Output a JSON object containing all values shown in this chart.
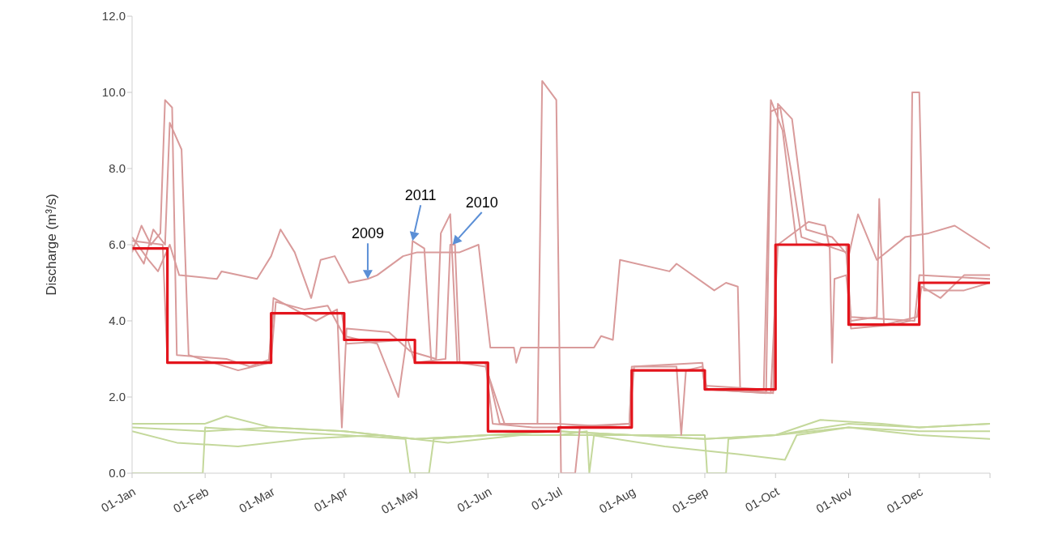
{
  "chart_data": {
    "type": "line",
    "ylabel": "Discharge (m³/s)",
    "xlim": [
      "--01-01",
      "--12-31"
    ],
    "xticks": [
      {
        "value": "--01-01",
        "label": "01-Jan"
      },
      {
        "value": "--02-01",
        "label": "01-Feb"
      },
      {
        "value": "--03-01",
        "label": "01-Mar"
      },
      {
        "value": "--04-01",
        "label": "01-Apr"
      },
      {
        "value": "--05-01",
        "label": "01-May"
      },
      {
        "value": "--06-01",
        "label": "01-Jun"
      },
      {
        "value": "--07-01",
        "label": "01-Jul"
      },
      {
        "value": "--08-01",
        "label": "01-Aug"
      },
      {
        "value": "--09-01",
        "label": "01-Sep"
      },
      {
        "value": "--10-01",
        "label": "01-Oct"
      },
      {
        "value": "--11-01",
        "label": "01-Nov"
      },
      {
        "value": "--12-01",
        "label": "01-Dec"
      },
      {
        "value": "--12-31",
        "label": null
      }
    ],
    "ylim": [
      0,
      12
    ],
    "yticks": [
      {
        "value": 0,
        "label": "0.0"
      },
      {
        "value": 2,
        "label": "2.0"
      },
      {
        "value": 4,
        "label": "4.0"
      },
      {
        "value": 6,
        "label": "6.0"
      },
      {
        "value": 8,
        "label": "8.0"
      },
      {
        "value": 10,
        "label": "10.0"
      },
      {
        "value": 12,
        "label": "12.0"
      }
    ],
    "grid": false,
    "marker": "none",
    "line_style": "solid",
    "series": [
      {
        "color": "#c4d89b",
        "x": [
          "--01-01",
          "--02-01",
          "--02-10",
          "--03-01",
          "--04-01",
          "--05-01",
          "--06-01",
          "--07-01",
          "--08-01",
          "--09-01",
          "--10-01",
          "--11-01",
          "--12-01",
          "--12-31"
        ],
        "values": [
          1.3,
          1.3,
          1.5,
          1.2,
          1.1,
          0.9,
          1.0,
          1.1,
          1.0,
          0.9,
          1.0,
          1.3,
          1.2,
          1.3
        ]
      },
      {
        "color": "#c4d89b",
        "x": [
          "--01-01",
          "--01-31",
          "--02-01",
          "--03-01",
          "--04-01",
          "--04-27",
          "--04-29",
          "--05-07",
          "--05-09",
          "--06-01",
          "--07-01",
          "--08-01",
          "--09-01",
          "--10-01",
          "--11-01",
          "--12-01",
          "--12-31"
        ],
        "values": [
          0.0,
          0.0,
          1.2,
          1.1,
          1.0,
          0.9,
          0.0,
          0.0,
          0.9,
          1.0,
          1.1,
          1.0,
          0.9,
          1.0,
          1.2,
          1.1,
          1.1
        ]
      },
      {
        "color": "#c4d89b",
        "x": [
          "--01-01",
          "--01-20",
          "--02-15",
          "--03-15",
          "--04-15",
          "--05-15",
          "--06-15",
          "--07-15",
          "--08-15",
          "--09-15",
          "--10-05",
          "--10-10",
          "--11-01",
          "--12-01",
          "--12-31"
        ],
        "values": [
          1.1,
          0.8,
          0.7,
          0.9,
          1.0,
          0.8,
          1.0,
          1.0,
          0.7,
          0.5,
          0.35,
          1.0,
          1.2,
          1.0,
          0.9
        ]
      },
      {
        "color": "#c4d89b",
        "x": [
          "--01-01",
          "--02-01",
          "--03-01",
          "--04-01",
          "--05-01",
          "--06-01",
          "--07-01",
          "--07-13",
          "--07-14",
          "--07-16",
          "--08-01",
          "--09-01",
          "--09-02",
          "--09-10",
          "--09-11",
          "--10-01",
          "--10-20",
          "--11-15",
          "--12-01",
          "--12-31"
        ],
        "values": [
          1.2,
          1.1,
          1.2,
          1.1,
          0.9,
          1.0,
          1.0,
          1.1,
          0.0,
          1.0,
          1.0,
          1.0,
          0.0,
          0.0,
          0.9,
          1.0,
          1.4,
          1.3,
          1.2,
          1.3
        ]
      },
      {
        "color": "#d99b9b",
        "x": [
          "--01-01",
          "--01-08",
          "--01-12",
          "--01-17",
          "--01-21",
          "--02-06",
          "--02-08",
          "--02-23",
          "--02-26",
          "--03-01",
          "--03-05",
          "--03-11",
          "--03-18",
          "--03-22",
          "--03-28",
          "--04-03",
          "--04-11",
          "--04-15",
          "--04-26",
          "--05-02",
          "--05-20",
          "--05-28",
          "--06-02",
          "--06-12",
          "--06-13",
          "--06-15",
          "--07-16",
          "--07-19",
          "--07-24",
          "--07-27",
          "--08-17",
          "--08-20",
          "--09-05",
          "--09-10",
          "--09-15",
          "--09-16",
          "--09-30",
          "--10-02",
          "--10-08",
          "--10-14",
          "--10-25",
          "--11-01",
          "--11-05",
          "--11-13",
          "--11-25",
          "--12-05",
          "--12-16",
          "--12-31"
        ],
        "values": [
          6.2,
          5.6,
          5.3,
          6.0,
          5.2,
          5.1,
          5.3,
          5.1,
          5.4,
          5.7,
          6.4,
          5.8,
          4.6,
          5.6,
          5.7,
          5.0,
          5.1,
          5.2,
          5.7,
          5.8,
          5.8,
          6.0,
          3.3,
          3.3,
          2.9,
          3.3,
          3.3,
          3.6,
          3.5,
          5.6,
          5.3,
          5.5,
          4.8,
          5.0,
          4.9,
          2.2,
          2.1,
          9.7,
          9.3,
          6.4,
          6.2,
          5.7,
          6.8,
          5.6,
          6.2,
          6.3,
          6.5,
          5.9
        ]
      },
      {
        "color": "#d99b9b",
        "x": [
          "--01-01",
          "--01-05",
          "--01-09",
          "--01-13",
          "--01-15",
          "--01-18",
          "--01-20",
          "--02-10",
          "--02-20",
          "--03-01",
          "--03-03",
          "--03-15",
          "--03-25",
          "--04-01",
          "--04-15",
          "--04-24",
          "--04-27",
          "--04-30",
          "--05-05",
          "--05-08",
          "--05-31",
          "--06-03",
          "--06-20",
          "--06-30",
          "--07-31",
          "--08-02",
          "--08-20",
          "--08-22",
          "--08-24",
          "--08-31",
          "--09-02",
          "--09-27",
          "--09-29",
          "--10-03",
          "--10-08",
          "--10-12",
          "--10-31",
          "--11-02",
          "--11-29",
          "--12-01",
          "--12-31"
        ],
        "values": [
          5.8,
          6.5,
          6.0,
          6.3,
          9.8,
          9.6,
          3.1,
          3.0,
          2.8,
          3.0,
          4.5,
          4.3,
          4.4,
          3.6,
          3.4,
          2.0,
          3.3,
          6.1,
          5.9,
          2.9,
          2.9,
          1.3,
          1.2,
          1.2,
          1.3,
          2.8,
          2.8,
          1.0,
          2.7,
          2.8,
          2.2,
          2.1,
          9.5,
          9.6,
          7.8,
          6.2,
          5.8,
          4.1,
          4.0,
          5.2,
          5.1
        ]
      },
      {
        "color": "#d99b9b",
        "x": [
          "--01-01",
          "--01-06",
          "--01-10",
          "--01-15",
          "--01-17",
          "--01-22",
          "--01-25",
          "--02-15",
          "--02-28",
          "--03-02",
          "--03-20",
          "--03-29",
          "--03-31",
          "--04-02",
          "--04-20",
          "--04-29",
          "--05-10",
          "--05-12",
          "--05-16",
          "--05-19",
          "--05-31",
          "--06-06",
          "--06-22",
          "--06-24",
          "--06-30",
          "--07-02",
          "--07-08",
          "--07-10",
          "--07-31",
          "--08-01",
          "--08-31",
          "--09-01",
          "--09-26",
          "--09-29",
          "--10-04",
          "--10-10",
          "--10-31",
          "--11-02",
          "--11-20",
          "--11-27",
          "--11-28",
          "--12-01",
          "--12-03",
          "--12-20",
          "--12-31"
        ],
        "values": [
          6.0,
          5.5,
          6.4,
          6.0,
          9.2,
          8.5,
          3.1,
          2.7,
          2.9,
          4.6,
          4.0,
          4.3,
          1.2,
          3.8,
          3.7,
          3.2,
          3.0,
          6.3,
          6.8,
          2.9,
          2.9,
          1.3,
          1.3,
          10.3,
          9.8,
          0.0,
          0.0,
          1.2,
          1.3,
          2.7,
          2.7,
          2.3,
          2.2,
          9.8,
          9.0,
          6.0,
          6.0,
          3.8,
          3.9,
          4.0,
          10.0,
          10.0,
          4.8,
          4.8,
          5.0
        ]
      },
      {
        "color": "#d99b9b",
        "x": [
          "--01-01",
          "--01-14",
          "--01-16",
          "--02-28",
          "--03-02",
          "--03-31",
          "--04-02",
          "--04-28",
          "--05-01",
          "--05-14",
          "--05-16",
          "--05-18",
          "--05-20",
          "--05-31",
          "--06-08",
          "--06-30",
          "--07-31",
          "--08-01",
          "--08-31",
          "--09-01",
          "--09-29",
          "--10-02",
          "--10-15",
          "--10-22",
          "--10-24",
          "--10-25",
          "--10-26",
          "--10-31",
          "--11-02",
          "--11-13",
          "--11-14",
          "--11-16",
          "--11-30",
          "--12-02",
          "--12-10",
          "--12-20",
          "--12-31"
        ],
        "values": [
          6.1,
          6.0,
          2.9,
          2.9,
          4.2,
          4.2,
          3.4,
          3.5,
          2.9,
          3.0,
          6.0,
          6.0,
          2.9,
          2.8,
          1.3,
          1.3,
          1.2,
          2.8,
          2.9,
          2.2,
          2.1,
          6.0,
          6.6,
          6.5,
          5.9,
          2.9,
          5.1,
          5.2,
          4.0,
          4.1,
          7.2,
          3.9,
          4.1,
          4.9,
          4.6,
          5.2,
          5.2
        ]
      },
      {
        "type": "step",
        "color": "#e3141c",
        "x": [
          "--01-01",
          "--01-16",
          "--03-01",
          "--04-01",
          "--05-01",
          "--06-01",
          "--07-01",
          "--08-01",
          "--09-01",
          "--10-01",
          "--11-01",
          "--12-01",
          "--12-31"
        ],
        "values": [
          5.9,
          2.9,
          4.2,
          3.5,
          2.9,
          1.1,
          1.2,
          2.7,
          2.2,
          6.0,
          3.9,
          5.0,
          5.0
        ]
      }
    ],
    "annotations": [
      {
        "text": "2009",
        "x": "--04-11",
        "y": 5.1
      },
      {
        "text": "2011",
        "x": "--04-30",
        "y": 6.1
      },
      {
        "text": "2010",
        "x": "--05-17",
        "y": 6.0
      }
    ]
  }
}
